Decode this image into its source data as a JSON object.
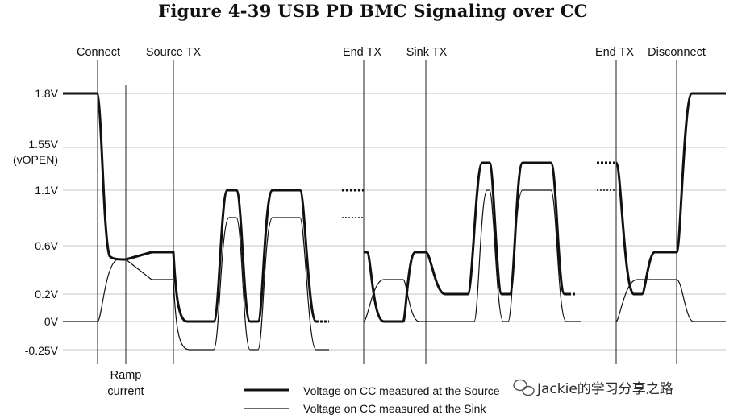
{
  "title": "Figure 4-39  USB PD BMC Signaling over CC",
  "chart_data": {
    "type": "line",
    "title": "Figure 4-39  USB PD BMC Signaling over CC",
    "y_ticks": [
      {
        "value": 1.8,
        "label": "1.8V"
      },
      {
        "value": 1.55,
        "label": "1.55V",
        "sublabel": "(vOPEN)"
      },
      {
        "value": 1.1,
        "label": "1.1V"
      },
      {
        "value": 0.6,
        "label": "0.6V"
      },
      {
        "value": 0.2,
        "label": "0.2V"
      },
      {
        "value": 0.0,
        "label": "0V"
      },
      {
        "value": -0.25,
        "label": "-0.25V"
      }
    ],
    "ylim": [
      -0.25,
      1.8
    ],
    "events": [
      "Connect",
      "Ramp current",
      "Source TX",
      "End TX",
      "Sink TX",
      "End TX",
      "Disconnect"
    ],
    "series": [
      {
        "name": "Voltage on CC measured at the Source",
        "style": "thick",
        "levels_v": [
          1.8,
          0.48,
          0.55,
          0.0,
          1.1,
          0.0,
          1.1,
          0.0,
          1.1,
          0.55,
          0.2,
          1.35,
          0.2,
          1.35,
          0.2,
          1.35,
          0.2,
          0.55,
          1.8
        ]
      },
      {
        "name": "Voltage on CC measured at the Sink",
        "style": "thin",
        "levels_v": [
          0.0,
          0.48,
          0.38,
          -0.25,
          0.85,
          -0.25,
          0.85,
          -0.25,
          0.85,
          0.38,
          0.0,
          1.1,
          0.0,
          1.1,
          0.0,
          1.1,
          0.0,
          0.38,
          0.0
        ]
      }
    ]
  },
  "event_labels": {
    "connect": "Connect",
    "source_tx": "Source TX",
    "end_tx_1": "End TX",
    "sink_tx": "Sink TX",
    "end_tx_2": "End TX",
    "disconnect": "Disconnect",
    "ramp_line1": "Ramp",
    "ramp_line2": "current"
  },
  "legend": {
    "source": "Voltage on CC measured at the Source",
    "sink": "Voltage on CC measured at the Sink"
  },
  "watermark": "Jackie的学习分享之路"
}
